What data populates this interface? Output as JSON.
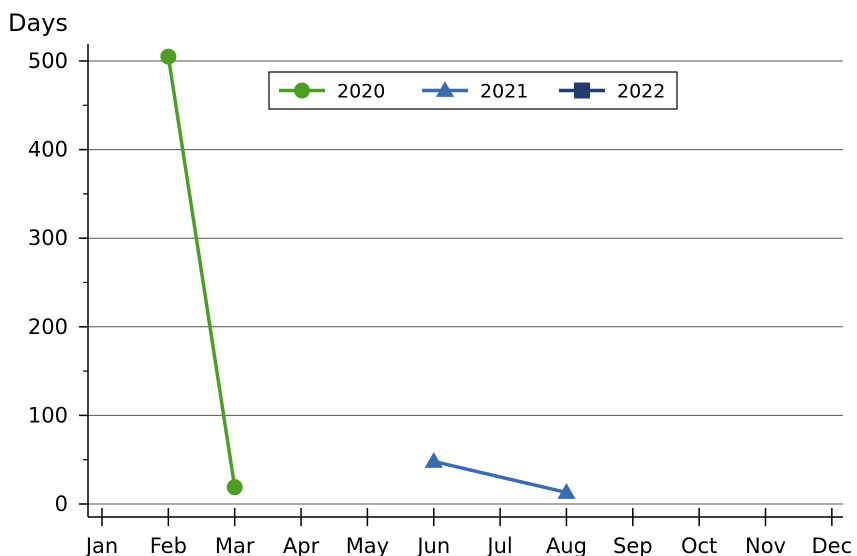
{
  "chart_data": {
    "type": "line",
    "title": "",
    "xlabel": "",
    "ylabel": "Days",
    "categories": [
      "Jan",
      "Feb",
      "Mar",
      "Apr",
      "May",
      "Jun",
      "Jul",
      "Aug",
      "Sep",
      "Oct",
      "Nov",
      "Dec"
    ],
    "ylim": [
      0,
      520
    ],
    "yticks": [
      "0",
      "100",
      "200",
      "300",
      "400",
      "500"
    ],
    "grid": true,
    "legend_position": "top-center",
    "series": [
      {
        "name": "2020",
        "color": "#4e9d24",
        "marker": "circle",
        "points": [
          {
            "x": "Feb",
            "y": 505
          },
          {
            "x": "Mar",
            "y": 19
          }
        ]
      },
      {
        "name": "2021",
        "color": "#3a6cb0",
        "marker": "triangle",
        "points": [
          {
            "x": "Jun",
            "y": 48
          },
          {
            "x": "Aug",
            "y": 13
          }
        ]
      },
      {
        "name": "2022",
        "color": "#233b6e",
        "marker": "square",
        "points": []
      }
    ]
  }
}
